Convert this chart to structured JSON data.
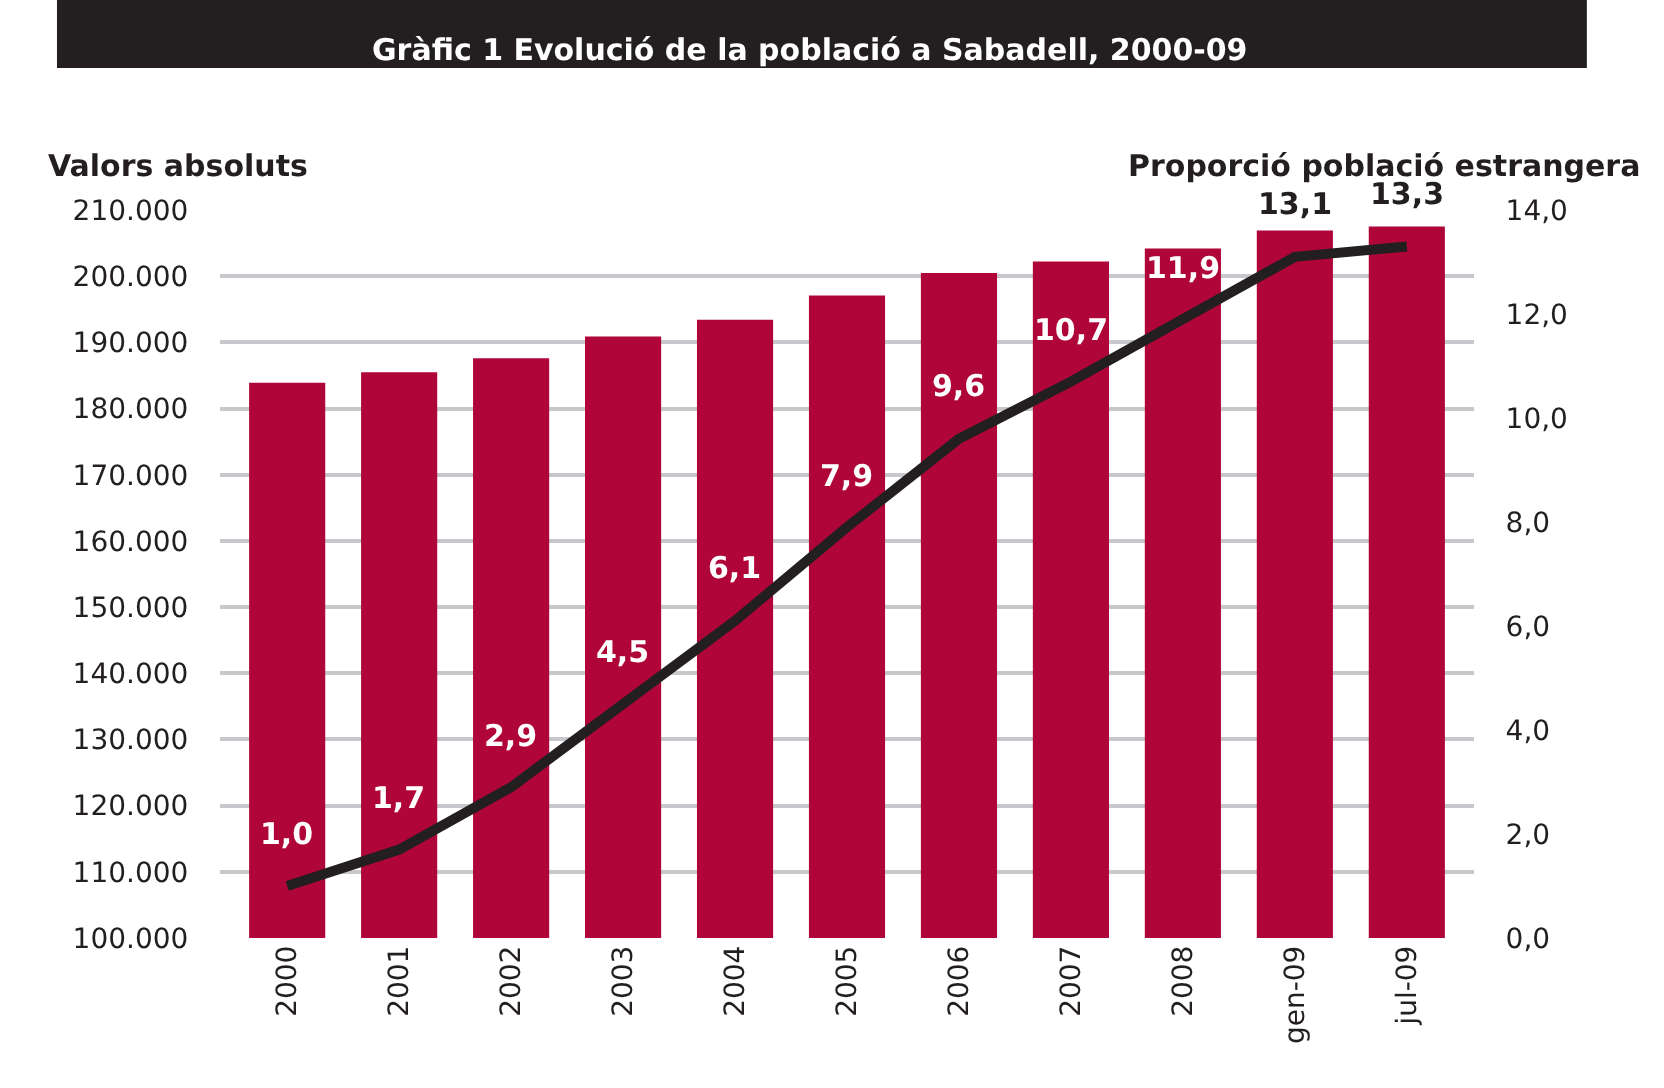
{
  "chart_data": {
    "type": "bar",
    "title": "Gràfic 1 Evolució de la població a Sabadell, 2000-09",
    "ylabel": "Valors absoluts",
    "y2label": "Proporció població estrangera",
    "categories": [
      "2000",
      "2001",
      "2002",
      "2003",
      "2004",
      "2005",
      "2006",
      "2007",
      "2008",
      "gen-09",
      "jul-09"
    ],
    "series": [
      {
        "color": "#b00538",
        "values": [
          183900,
          185500,
          187600,
          190900,
          193400,
          197100,
          200500,
          202200,
          204200,
          206900,
          207500
        ]
      },
      {
        "type": "line",
        "axis": "y2",
        "color": "#231f20",
        "values": [
          1.0,
          1.7,
          2.9,
          4.5,
          6.1,
          7.9,
          9.6,
          10.7,
          11.9,
          13.1,
          13.3
        ],
        "value_labels": [
          "1,0",
          "1,7",
          "2,9",
          "4,5",
          "6,1",
          "7,9",
          "9,6",
          "10,7",
          "11,9",
          "13,1",
          "13,3"
        ]
      }
    ],
    "ylim": [
      100000,
      210000
    ],
    "yticks": [
      {
        "value": 100000,
        "label": "100.000"
      },
      {
        "value": 110000,
        "label": "110.000"
      },
      {
        "value": 120000,
        "label": "120.000"
      },
      {
        "value": 130000,
        "label": "130.000"
      },
      {
        "value": 140000,
        "label": "140.000"
      },
      {
        "value": 150000,
        "label": "150.000"
      },
      {
        "value": 160000,
        "label": "160.000"
      },
      {
        "value": 170000,
        "label": "170.000"
      },
      {
        "value": 180000,
        "label": "180.000"
      },
      {
        "value": 190000,
        "label": "190.000"
      },
      {
        "value": 200000,
        "label": "200.000"
      },
      {
        "value": 210000,
        "label": "210.000"
      }
    ],
    "y2lim": [
      0,
      14
    ],
    "y2ticks": [
      {
        "value": 0,
        "label": "0,0"
      },
      {
        "value": 2,
        "label": "2,0"
      },
      {
        "value": 4,
        "label": "4,0"
      },
      {
        "value": 6,
        "label": "6,0"
      },
      {
        "value": 8,
        "label": "8,0"
      },
      {
        "value": 10,
        "label": "10,0"
      },
      {
        "value": 12,
        "label": "12,0"
      },
      {
        "value": 14,
        "label": "14,0"
      }
    ],
    "grid": "y",
    "legend": false,
    "marker": "none",
    "line_style": "solid"
  }
}
